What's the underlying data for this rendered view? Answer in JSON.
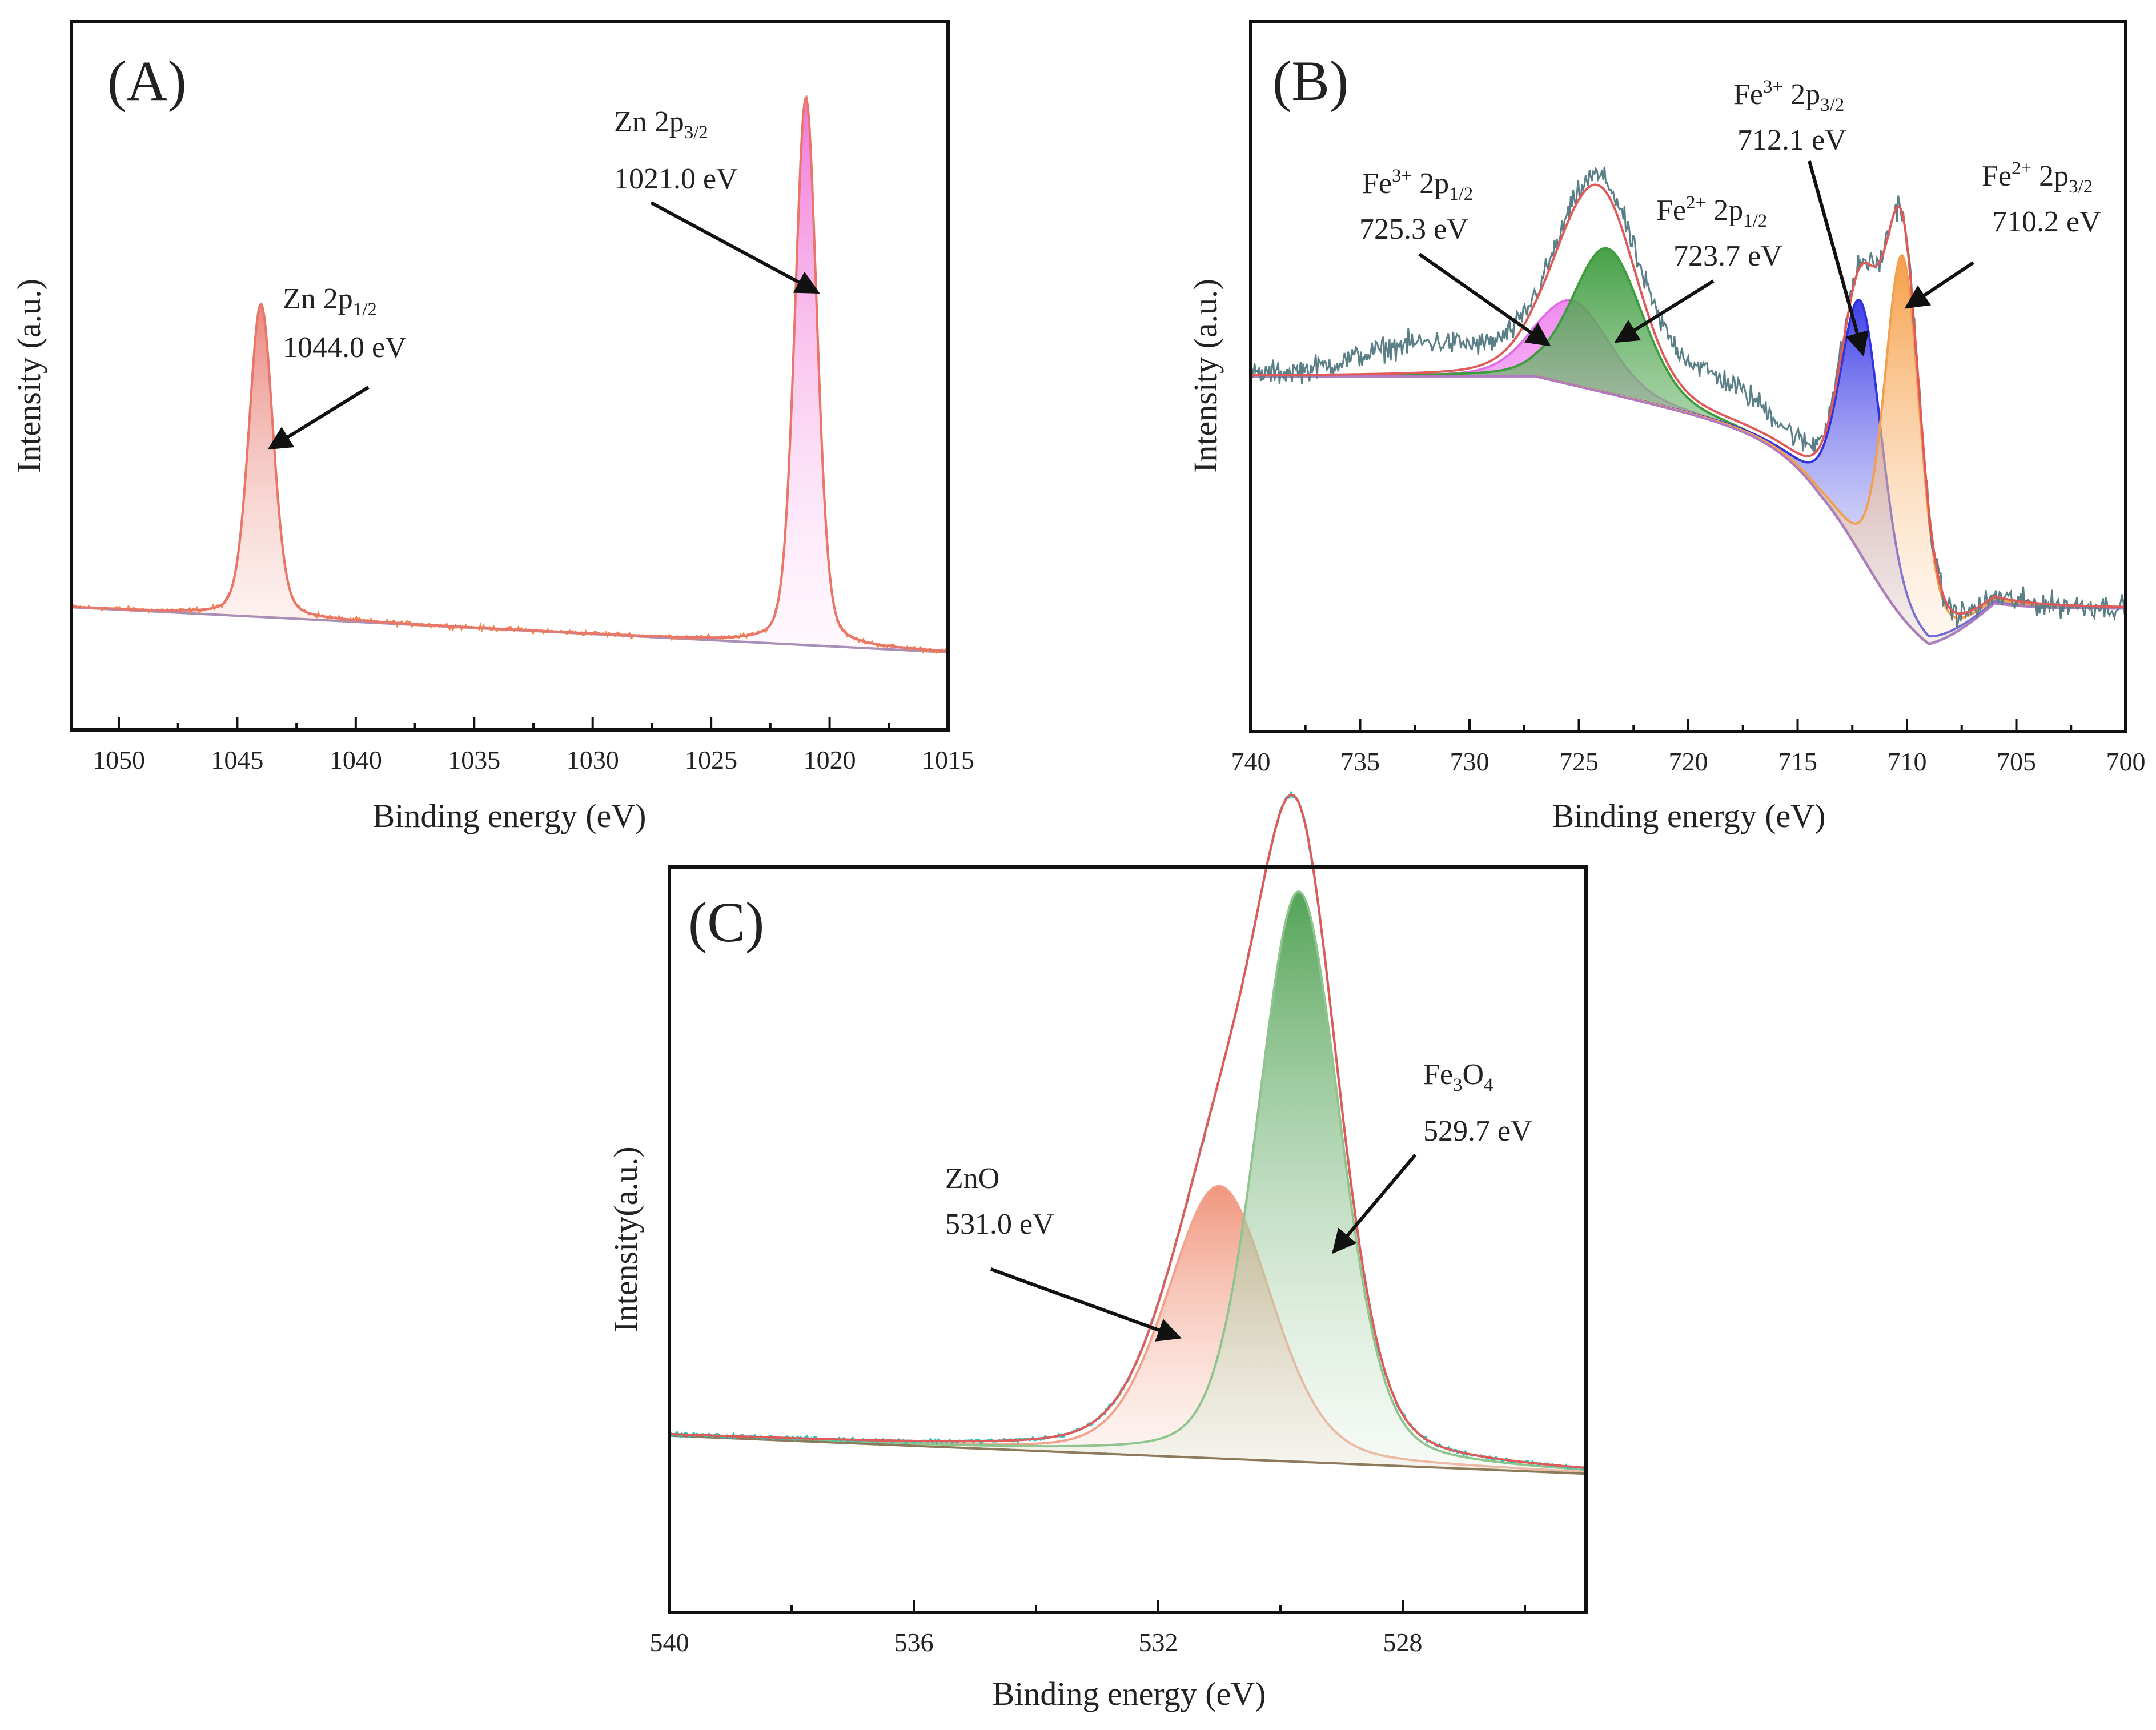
{
  "chart_data": [
    {
      "panel": "(A)",
      "type": "line",
      "xlabel": "Binding energy (eV)",
      "ylabel": "Intensity (a.u.)",
      "xlim": [
        1052,
        1015
      ],
      "xticks": [
        1050,
        1045,
        1040,
        1035,
        1030,
        1025,
        1020,
        1015
      ],
      "ylim": [
        0,
        1
      ],
      "background": {
        "x": [
          1052,
          1015
        ],
        "y": [
          0.145,
          0.07
        ]
      },
      "peaks": [
        {
          "center": 1044.0,
          "fwhm": 1.2,
          "height": 0.52,
          "color": "#e57f72",
          "fill": "#f4b6ad",
          "label_main": "Zn 2p",
          "label_sub": "1/2",
          "label_energy": "1044.0 eV"
        },
        {
          "center": 1021.0,
          "fwhm": 1.1,
          "height": 0.91,
          "color": "#f08a60",
          "fill": "#f58ae2",
          "label_main": "Zn 2p",
          "label_sub": "3/2",
          "label_energy": "1021.0 eV"
        }
      ],
      "colors": {
        "envelope": "#e8766a",
        "raw": "#f5854a",
        "baseline": "#a68fb8"
      }
    },
    {
      "panel": "(B)",
      "type": "line",
      "xlabel": "Binding energy (eV)",
      "ylabel": "Intensity (a.u.)",
      "xlim": [
        740,
        700
      ],
      "xticks": [
        740,
        735,
        730,
        725,
        720,
        715,
        710,
        705,
        700
      ],
      "ylim": [
        0,
        1
      ],
      "background_step": {
        "low": 0.145,
        "high": 0.53,
        "shoulder": 0.04,
        "center": 712.0,
        "width": 1.6,
        "slope_from": 727,
        "slope_to": 714,
        "slope_drop": 0.11
      },
      "peaks": [
        {
          "center": 725.3,
          "fwhm": 4.0,
          "height": 0.14,
          "color": "#e26ee3",
          "fill": "#f28df0",
          "label_ion": "Fe",
          "label_charge": "3+",
          "label_orbital": " 2p",
          "label_sub": "1/2",
          "label_energy": "725.3 eV"
        },
        {
          "center": 723.7,
          "fwhm": 3.8,
          "height": 0.24,
          "color": "#3e9c3e",
          "fill": "#4aa64a",
          "label_ion": "Fe",
          "label_charge": "2+",
          "label_orbital": " 2p",
          "label_sub": "1/2",
          "label_energy": "723.7 eV"
        },
        {
          "center": 712.1,
          "fwhm": 2.2,
          "height": 0.42,
          "color": "#3333dd",
          "fill": "#3b3bf0",
          "label_ion": "Fe",
          "label_charge": "3+",
          "label_orbital": " 2p",
          "label_sub": "3/2",
          "label_energy": "712.1 eV"
        },
        {
          "center": 710.2,
          "fwhm": 1.9,
          "height": 0.6,
          "color": "#f0a050",
          "fill": "#f5a050",
          "label_ion": "Fe",
          "label_charge": "2+",
          "label_orbital": " 2p",
          "label_sub": "3/2",
          "label_energy": "710.2 eV"
        }
      ],
      "colors": {
        "envelope": "#e05a5a",
        "raw": "#5a7f86",
        "baseline": "#b07ac0"
      }
    },
    {
      "panel": "(C)",
      "type": "line",
      "xlabel": "Binding energy (eV)",
      "ylabel": "Intensity(a.u.)",
      "xlim": [
        540,
        525
      ],
      "xticks": [
        540,
        536,
        532,
        528
      ],
      "ylim": [
        0,
        1
      ],
      "background": {
        "x": [
          540,
          525
        ],
        "y": [
          0.22,
          0.16
        ]
      },
      "peaks": [
        {
          "center": 531.0,
          "fwhm": 2.0,
          "height": 0.43,
          "color": "#f2a28a",
          "fill": "#f0957a",
          "label": "ZnO",
          "label_energy": "531.0 eV"
        },
        {
          "center": 529.7,
          "fwhm": 1.6,
          "height": 0.9,
          "color": "#8fc48f",
          "fill": "#4f9e52",
          "label_ion": "Fe",
          "label_s1": "3",
          "label_o": "O",
          "label_s2": "4",
          "label_energy": "529.7 eV"
        }
      ],
      "colors": {
        "envelope": "#e05a5a",
        "raw": "#2cc6b8",
        "baseline": "#8d7a5a",
        "fe_fit": "#a0603a"
      }
    }
  ]
}
